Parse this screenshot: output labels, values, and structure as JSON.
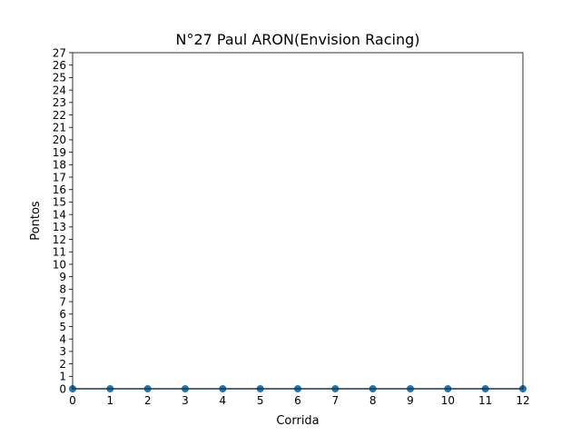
{
  "chart_data": {
    "type": "line",
    "title": "N°27 Paul ARON(Envision Racing)",
    "xlabel": "Corrida",
    "ylabel": "Pontos",
    "xlim": [
      0,
      12
    ],
    "ylim": [
      0,
      27
    ],
    "xticks": [
      0,
      1,
      2,
      3,
      4,
      5,
      6,
      7,
      8,
      9,
      10,
      11,
      12
    ],
    "yticks": [
      0,
      1,
      2,
      3,
      4,
      5,
      6,
      7,
      8,
      9,
      10,
      11,
      12,
      13,
      14,
      15,
      16,
      17,
      18,
      19,
      20,
      21,
      22,
      23,
      24,
      25,
      26,
      27
    ],
    "grid": false,
    "legend": false,
    "marker": "circle",
    "color": "#1f77b4",
    "x": [
      0,
      1,
      2,
      3,
      4,
      5,
      6,
      7,
      8,
      9,
      10,
      11,
      12
    ],
    "y": [
      0,
      0,
      0,
      0,
      0,
      0,
      0,
      0,
      0,
      0,
      0,
      0,
      0
    ]
  }
}
